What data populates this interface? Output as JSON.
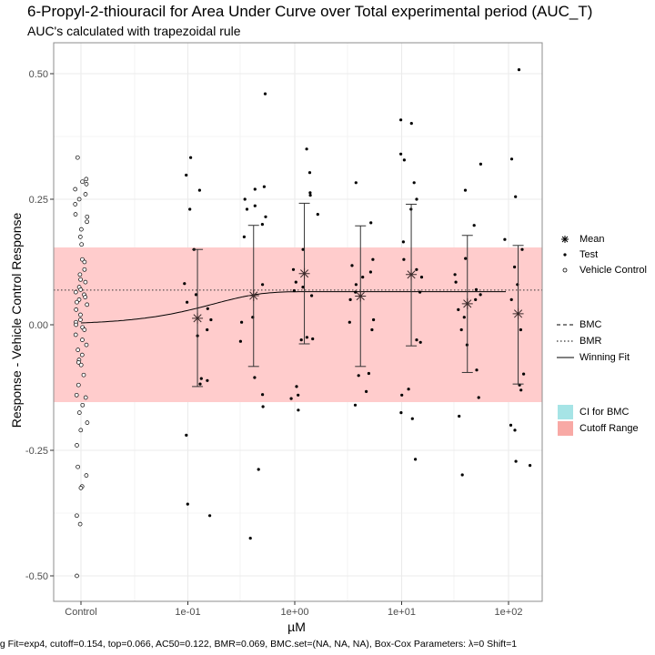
{
  "chart_data": {
    "type": "scatter",
    "title": "6-Propyl-2-thiouracil for Area Under Curve over Total experimental period (AUC_T)",
    "subtitle": "AUC's calculated with trapezoidal rule",
    "xlabel": "µM",
    "ylabel": "Response - Vehicle Control Response",
    "x_scale": "log10",
    "x_tick_labels": [
      "Control",
      "1e-01",
      "1e+00",
      "1e+01",
      "1e+02"
    ],
    "y_tick_labels": [
      "0.50",
      "0.25",
      "0.00",
      "-0.25",
      "-0.50"
    ],
    "y_ticks": [
      0.5,
      0.25,
      0,
      -0.25,
      -0.5
    ],
    "ylim": [
      -0.55,
      0.55
    ],
    "grid": true,
    "cutoff_range": [
      -0.154,
      0.154
    ],
    "bmr_line": 0.069,
    "winning_fit": {
      "model": "exp4",
      "top": 0.066,
      "ac50": 0.122
    },
    "means": [
      {
        "x": 0.123,
        "mean": 0.013,
        "lower": -0.123,
        "upper": 0.15
      },
      {
        "x": 0.412,
        "mean": 0.058,
        "lower": -0.083,
        "upper": 0.198
      },
      {
        "x": 1.23,
        "mean": 0.102,
        "lower": -0.038,
        "upper": 0.242
      },
      {
        "x": 4.12,
        "mean": 0.057,
        "lower": -0.083,
        "upper": 0.197
      },
      {
        "x": 12.3,
        "mean": 0.1,
        "lower": -0.042,
        "upper": 0.24
      },
      {
        "x": 41.2,
        "mean": 0.042,
        "lower": -0.095,
        "upper": 0.178
      },
      {
        "x": 123,
        "mean": 0.022,
        "lower": -0.118,
        "upper": 0.158
      }
    ],
    "test_points": [
      {
        "x": 0.123,
        "y": [
          0.333,
          0.298,
          0.268,
          0.23,
          0.15,
          0.082,
          0.06,
          0.045,
          0.032,
          0.01,
          -0.01,
          -0.022,
          -0.107,
          -0.111,
          -0.118,
          -0.22,
          -0.357,
          -0.38
        ]
      },
      {
        "x": 0.412,
        "y": [
          0.46,
          0.275,
          0.27,
          0.25,
          0.237,
          0.23,
          0.215,
          0.2,
          0.175,
          0.08,
          0.015,
          0.005,
          -0.033,
          -0.105,
          -0.139,
          -0.163,
          -0.288,
          -0.425
        ]
      },
      {
        "x": 1.23,
        "y": [
          0.35,
          0.303,
          0.263,
          0.258,
          0.22,
          0.15,
          0.11,
          0.085,
          0.075,
          0.068,
          0.058,
          -0.025,
          -0.028,
          -0.03,
          -0.123,
          -0.14,
          -0.147,
          -0.17
        ]
      },
      {
        "x": 4.12,
        "y": [
          0.283,
          0.203,
          0.13,
          0.118,
          0.105,
          0.095,
          0.08,
          0.065,
          0.05,
          0.01,
          0.005,
          -0.01,
          -0.097,
          -0.101,
          -0.133,
          -0.16
        ]
      },
      {
        "x": 12.3,
        "y": [
          0.408,
          0.401,
          0.34,
          0.328,
          0.283,
          0.25,
          0.23,
          0.165,
          0.13,
          0.11,
          0.095,
          0.065,
          -0.03,
          -0.035,
          -0.128,
          -0.14,
          -0.175,
          -0.187,
          -0.268
        ]
      },
      {
        "x": 41.2,
        "y": [
          0.32,
          0.268,
          0.198,
          0.132,
          0.1,
          0.085,
          0.07,
          0.06,
          0.05,
          0.03,
          0.015,
          -0.01,
          -0.04,
          -0.09,
          -0.145,
          -0.182,
          -0.299
        ]
      },
      {
        "x": 123,
        "y": [
          0.508,
          0.33,
          0.255,
          0.17,
          0.15,
          0.115,
          0.08,
          0.05,
          -0.01,
          -0.098,
          -0.12,
          -0.13,
          -0.2,
          -0.21,
          -0.272,
          -0.28
        ]
      }
    ],
    "vehicle_control": [
      0.333,
      0.29,
      0.285,
      0.28,
      0.27,
      0.26,
      0.25,
      0.24,
      0.22,
      0.215,
      0.205,
      0.19,
      0.175,
      0.16,
      0.13,
      0.125,
      0.11,
      0.1,
      0.09,
      0.085,
      0.075,
      0.07,
      0.065,
      0.06,
      0.055,
      0.05,
      0.045,
      0.04,
      0.03,
      0.02,
      0.01,
      0.005,
      0.0,
      -0.005,
      -0.01,
      -0.02,
      -0.03,
      -0.04,
      -0.05,
      -0.06,
      -0.07,
      -0.075,
      -0.08,
      -0.1,
      -0.12,
      -0.14,
      -0.145,
      -0.16,
      -0.175,
      -0.195,
      -0.21,
      -0.24,
      -0.283,
      -0.3,
      -0.322,
      -0.325,
      -0.38,
      -0.397,
      -0.5
    ],
    "legend": {
      "shapes": [
        "Mean",
        "Test",
        "Vehicle Control"
      ],
      "lines": [
        "BMC",
        "BMR",
        "Winning Fit"
      ],
      "fills": [
        "CI for BMC",
        "Cutoff Range"
      ]
    },
    "colors": {
      "cutoff_fill": "#ffcccc",
      "cutoff_key": "#f8a9a5",
      "ci_key": "#a6e4e6",
      "grid": "#ebebeb",
      "panel_border": "#8c8c8c"
    },
    "caption": "ng Fit=exp4, cutoff=0.154, top=0.066, AC50=0.122, BMR=0.069, BMC.set=(NA, NA, NA), Box-Cox Parameters: λ=0 Shift=1"
  }
}
